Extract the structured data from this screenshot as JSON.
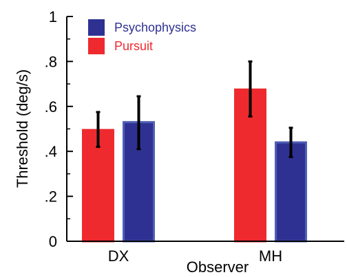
{
  "chart_data": {
    "type": "bar",
    "title": "",
    "xlabel": "Observer",
    "ylabel": "Threshold (deg/s)",
    "ylim": [
      0,
      1
    ],
    "yticks": [
      {
        "value": 0,
        "label": "0"
      },
      {
        "value": 0.2,
        "label": ".2"
      },
      {
        "value": 0.4,
        "label": ".4"
      },
      {
        "value": 0.6,
        "label": ".6"
      },
      {
        "value": 0.8,
        "label": ".8"
      },
      {
        "value": 1,
        "label": "1"
      }
    ],
    "minor_yticks": [
      0.1,
      0.3,
      0.5,
      0.7,
      0.9
    ],
    "categories": [
      "DX",
      "MH"
    ],
    "series": [
      {
        "name": "Pursuit",
        "color": "#EE2A2F",
        "edge": "#EE2A2F",
        "values": [
          0.495,
          0.675
        ],
        "err_low": [
          0.42,
          0.555
        ],
        "err_high": [
          0.575,
          0.8
        ]
      },
      {
        "name": "Psychophysics",
        "color": "#2E3192",
        "edge": "#4F5FB5",
        "values": [
          0.53,
          0.44
        ],
        "err_low": [
          0.41,
          0.375
        ],
        "err_high": [
          0.645,
          0.505
        ]
      }
    ],
    "legend": {
      "position": "top-left",
      "entries": [
        {
          "label": "Psychophysics",
          "color": "#2E3192",
          "text_color": "#2E3192"
        },
        {
          "label": "Pursuit",
          "color": "#EE2A2F",
          "text_color": "#EE2A2F"
        }
      ]
    },
    "grid": false
  }
}
